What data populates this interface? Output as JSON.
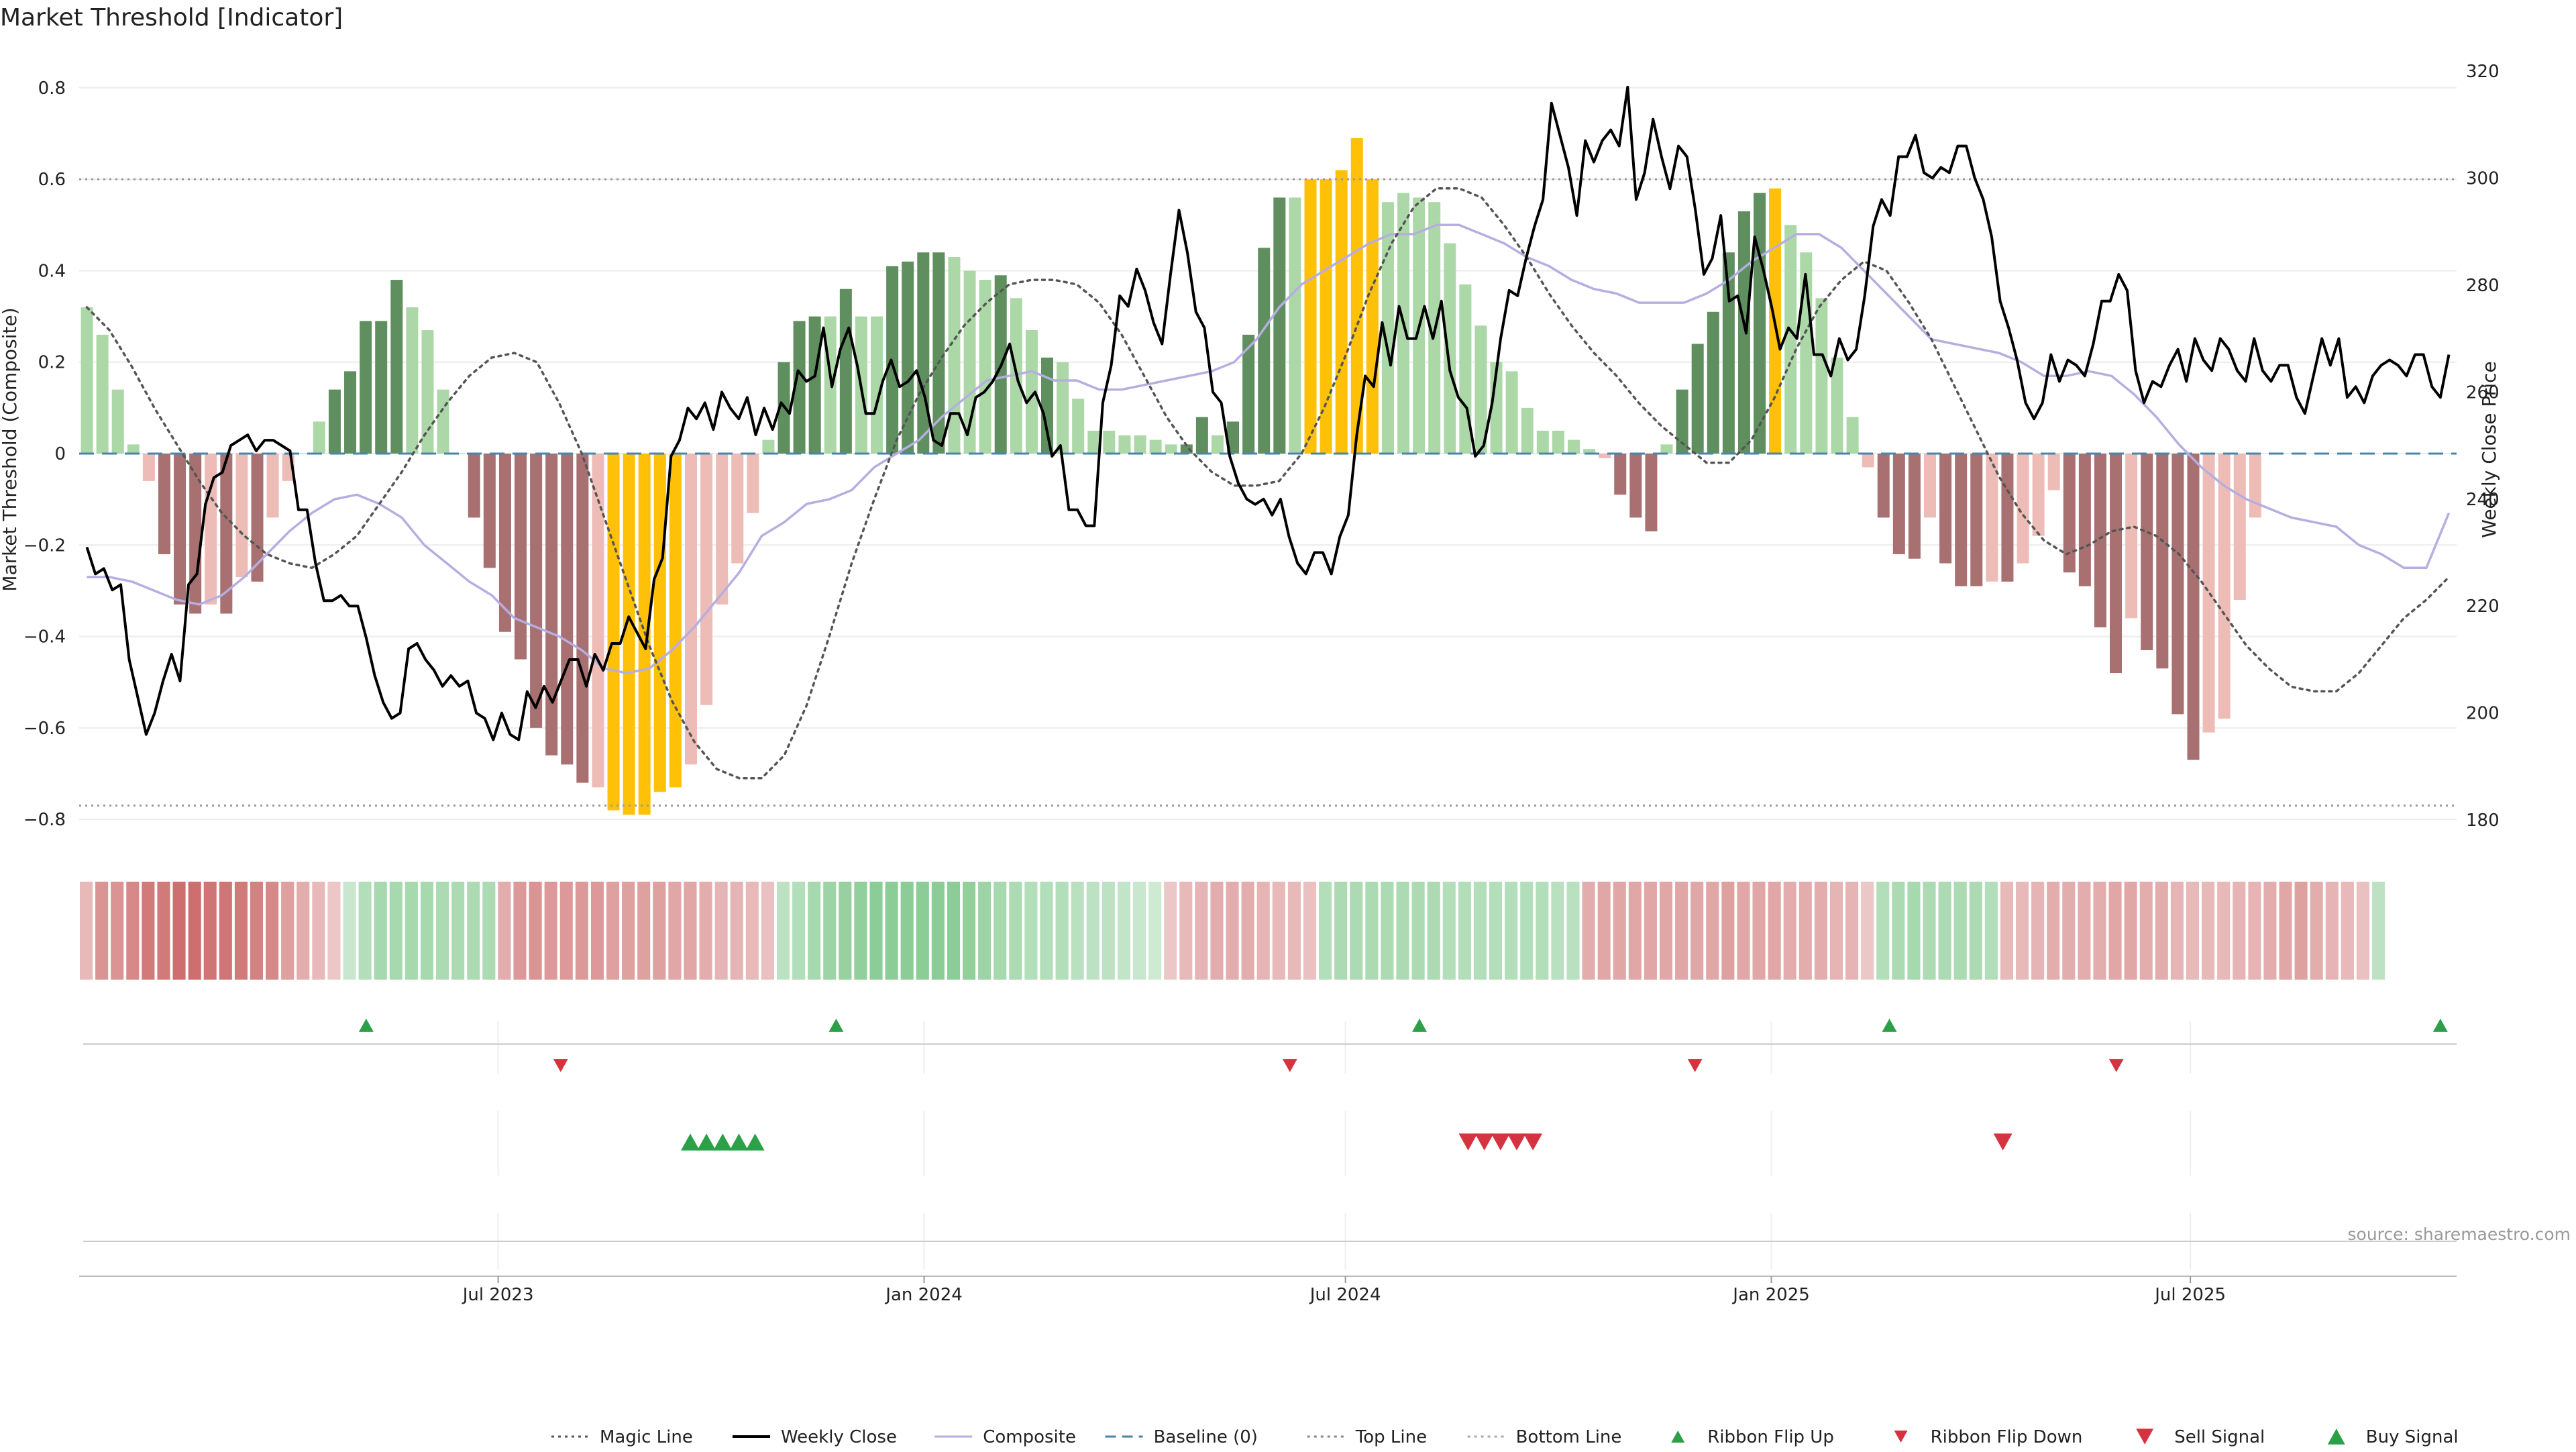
{
  "title": "Market Threshold [Indicator]",
  "source": "source: sharemaestro.com",
  "colors": {
    "dark_green": "#5f8f5f",
    "light_green": "#acd8a8",
    "dark_red": "#a87070",
    "light_red": "#eebcb6",
    "gold": "#ffc107",
    "weekly_close": "#000000",
    "composite": "#b6aee0",
    "magic": "#555555",
    "baseline": "#4a84a8",
    "threshold": "#888888",
    "buy_marker": "#2ca048",
    "sell_marker": "#d63340"
  },
  "chart_data": {
    "type": "bar",
    "title": "Market Threshold [Indicator]",
    "ylabel": "Market Threshold (Composite)",
    "y2label": "Weekly Close Price",
    "ylim": [
      -0.86,
      0.86
    ],
    "y2lim": [
      175,
      322
    ],
    "yticks": [
      -0.8,
      -0.6,
      -0.4,
      -0.2,
      0,
      0.2,
      0.4,
      0.6,
      0.8
    ],
    "ytick_labels": [
      "−0.8",
      "−0.6",
      "−0.4",
      "−0.2",
      "0",
      "0.2",
      "0.4",
      "0.6",
      "0.8"
    ],
    "y2ticks": [
      180,
      200,
      220,
      240,
      260,
      280,
      300,
      320
    ],
    "xlim": [
      "2023-01-01",
      "2025-10-24"
    ],
    "x_ticks": [
      {
        "date": "2023-07-01",
        "label": "Jul 2023"
      },
      {
        "date": "2024-01-01",
        "label": "Jan 2024"
      },
      {
        "date": "2024-07-01",
        "label": "Jul 2024"
      },
      {
        "date": "2025-01-01",
        "label": "Jan 2025"
      },
      {
        "date": "2025-07-01",
        "label": "Jul 2025"
      }
    ],
    "start_date": "2023-01-06",
    "bars": [
      {
        "v": 0.32,
        "c": "lg"
      },
      {
        "v": 0.26,
        "c": "lg"
      },
      {
        "v": 0.14,
        "c": "lg"
      },
      {
        "v": 0.02,
        "c": "lg"
      },
      {
        "v": -0.06,
        "c": "lr"
      },
      {
        "v": -0.22,
        "c": "dr"
      },
      {
        "v": -0.33,
        "c": "dr"
      },
      {
        "v": -0.35,
        "c": "dr"
      },
      {
        "v": -0.33,
        "c": "lr"
      },
      {
        "v": -0.35,
        "c": "dr"
      },
      {
        "v": -0.27,
        "c": "lr"
      },
      {
        "v": -0.28,
        "c": "dr"
      },
      {
        "v": -0.14,
        "c": "lr"
      },
      {
        "v": -0.06,
        "c": "lr"
      },
      {
        "v": 0.0,
        "c": "lg"
      },
      {
        "v": 0.07,
        "c": "lg"
      },
      {
        "v": 0.14,
        "c": "dg"
      },
      {
        "v": 0.18,
        "c": "dg"
      },
      {
        "v": 0.29,
        "c": "dg"
      },
      {
        "v": 0.29,
        "c": "dg"
      },
      {
        "v": 0.38,
        "c": "dg"
      },
      {
        "v": 0.32,
        "c": "lg"
      },
      {
        "v": 0.27,
        "c": "lg"
      },
      {
        "v": 0.14,
        "c": "lg"
      },
      {
        "v": 0.0,
        "c": "lg"
      },
      {
        "v": -0.14,
        "c": "dr"
      },
      {
        "v": -0.25,
        "c": "dr"
      },
      {
        "v": -0.39,
        "c": "dr"
      },
      {
        "v": -0.45,
        "c": "dr"
      },
      {
        "v": -0.6,
        "c": "dr"
      },
      {
        "v": -0.66,
        "c": "dr"
      },
      {
        "v": -0.68,
        "c": "dr"
      },
      {
        "v": -0.72,
        "c": "dr"
      },
      {
        "v": -0.73,
        "c": "lr"
      },
      {
        "v": -0.78,
        "c": "go"
      },
      {
        "v": -0.79,
        "c": "go"
      },
      {
        "v": -0.79,
        "c": "go"
      },
      {
        "v": -0.74,
        "c": "go"
      },
      {
        "v": -0.73,
        "c": "go"
      },
      {
        "v": -0.68,
        "c": "lr"
      },
      {
        "v": -0.55,
        "c": "lr"
      },
      {
        "v": -0.33,
        "c": "lr"
      },
      {
        "v": -0.24,
        "c": "lr"
      },
      {
        "v": -0.13,
        "c": "lr"
      },
      {
        "v": 0.03,
        "c": "lg"
      },
      {
        "v": 0.2,
        "c": "dg"
      },
      {
        "v": 0.29,
        "c": "dg"
      },
      {
        "v": 0.3,
        "c": "dg"
      },
      {
        "v": 0.3,
        "c": "lg"
      },
      {
        "v": 0.36,
        "c": "dg"
      },
      {
        "v": 0.3,
        "c": "lg"
      },
      {
        "v": 0.3,
        "c": "lg"
      },
      {
        "v": 0.41,
        "c": "dg"
      },
      {
        "v": 0.42,
        "c": "dg"
      },
      {
        "v": 0.44,
        "c": "dg"
      },
      {
        "v": 0.44,
        "c": "dg"
      },
      {
        "v": 0.43,
        "c": "lg"
      },
      {
        "v": 0.4,
        "c": "lg"
      },
      {
        "v": 0.38,
        "c": "lg"
      },
      {
        "v": 0.39,
        "c": "dg"
      },
      {
        "v": 0.34,
        "c": "lg"
      },
      {
        "v": 0.27,
        "c": "lg"
      },
      {
        "v": 0.21,
        "c": "dg"
      },
      {
        "v": 0.2,
        "c": "lg"
      },
      {
        "v": 0.12,
        "c": "lg"
      },
      {
        "v": 0.05,
        "c": "lg"
      },
      {
        "v": 0.05,
        "c": "lg"
      },
      {
        "v": 0.04,
        "c": "lg"
      },
      {
        "v": 0.04,
        "c": "lg"
      },
      {
        "v": 0.03,
        "c": "lg"
      },
      {
        "v": 0.02,
        "c": "lg"
      },
      {
        "v": 0.02,
        "c": "dg"
      },
      {
        "v": 0.08,
        "c": "dg"
      },
      {
        "v": 0.04,
        "c": "lg"
      },
      {
        "v": 0.07,
        "c": "dg"
      },
      {
        "v": 0.26,
        "c": "dg"
      },
      {
        "v": 0.45,
        "c": "dg"
      },
      {
        "v": 0.56,
        "c": "dg"
      },
      {
        "v": 0.56,
        "c": "lg"
      },
      {
        "v": 0.6,
        "c": "go"
      },
      {
        "v": 0.6,
        "c": "go"
      },
      {
        "v": 0.62,
        "c": "go"
      },
      {
        "v": 0.69,
        "c": "go"
      },
      {
        "v": 0.6,
        "c": "go"
      },
      {
        "v": 0.55,
        "c": "lg"
      },
      {
        "v": 0.57,
        "c": "lg"
      },
      {
        "v": 0.56,
        "c": "lg"
      },
      {
        "v": 0.55,
        "c": "lg"
      },
      {
        "v": 0.46,
        "c": "lg"
      },
      {
        "v": 0.37,
        "c": "lg"
      },
      {
        "v": 0.28,
        "c": "lg"
      },
      {
        "v": 0.2,
        "c": "lg"
      },
      {
        "v": 0.18,
        "c": "lg"
      },
      {
        "v": 0.1,
        "c": "lg"
      },
      {
        "v": 0.05,
        "c": "lg"
      },
      {
        "v": 0.05,
        "c": "lg"
      },
      {
        "v": 0.03,
        "c": "lg"
      },
      {
        "v": 0.01,
        "c": "lg"
      },
      {
        "v": -0.01,
        "c": "lr"
      },
      {
        "v": -0.09,
        "c": "dr"
      },
      {
        "v": -0.14,
        "c": "dr"
      },
      {
        "v": -0.17,
        "c": "dr"
      },
      {
        "v": 0.02,
        "c": "lg"
      },
      {
        "v": 0.14,
        "c": "dg"
      },
      {
        "v": 0.24,
        "c": "dg"
      },
      {
        "v": 0.31,
        "c": "dg"
      },
      {
        "v": 0.44,
        "c": "dg"
      },
      {
        "v": 0.53,
        "c": "dg"
      },
      {
        "v": 0.57,
        "c": "dg"
      },
      {
        "v": 0.58,
        "c": "go"
      },
      {
        "v": 0.5,
        "c": "lg"
      },
      {
        "v": 0.44,
        "c": "lg"
      },
      {
        "v": 0.34,
        "c": "lg"
      },
      {
        "v": 0.21,
        "c": "lg"
      },
      {
        "v": 0.08,
        "c": "lg"
      },
      {
        "v": -0.03,
        "c": "lr"
      },
      {
        "v": -0.14,
        "c": "dr"
      },
      {
        "v": -0.22,
        "c": "dr"
      },
      {
        "v": -0.23,
        "c": "dr"
      },
      {
        "v": -0.14,
        "c": "lr"
      },
      {
        "v": -0.24,
        "c": "dr"
      },
      {
        "v": -0.29,
        "c": "dr"
      },
      {
        "v": -0.29,
        "c": "dr"
      },
      {
        "v": -0.28,
        "c": "lr"
      },
      {
        "v": -0.28,
        "c": "dr"
      },
      {
        "v": -0.24,
        "c": "lr"
      },
      {
        "v": -0.18,
        "c": "lr"
      },
      {
        "v": -0.08,
        "c": "lr"
      },
      {
        "v": -0.26,
        "c": "dr"
      },
      {
        "v": -0.29,
        "c": "dr"
      },
      {
        "v": -0.38,
        "c": "dr"
      },
      {
        "v": -0.48,
        "c": "dr"
      },
      {
        "v": -0.36,
        "c": "lr"
      },
      {
        "v": -0.43,
        "c": "dr"
      },
      {
        "v": -0.47,
        "c": "dr"
      },
      {
        "v": -0.57,
        "c": "dr"
      },
      {
        "v": -0.67,
        "c": "dr"
      },
      {
        "v": -0.61,
        "c": "lr"
      },
      {
        "v": -0.58,
        "c": "lr"
      },
      {
        "v": -0.32,
        "c": "lr"
      },
      {
        "v": -0.14,
        "c": "lr"
      }
    ],
    "weekly_close": [
      231,
      226,
      227,
      223,
      224,
      210,
      203,
      196,
      200,
      206,
      211,
      206,
      224,
      226,
      239,
      244,
      245,
      250,
      251,
      252,
      249,
      251,
      251,
      250,
      249,
      238,
      238,
      228,
      221,
      221,
      222,
      220,
      220,
      214,
      207,
      202,
      199,
      200,
      212,
      213,
      210,
      208,
      205,
      207,
      205,
      206,
      200,
      199,
      195,
      200,
      196,
      195,
      204,
      201,
      205,
      202,
      206,
      210,
      210,
      205,
      211,
      208,
      213,
      213,
      218,
      215,
      212,
      225,
      229,
      248,
      251,
      257,
      255,
      258,
      253,
      260,
      257,
      255,
      259,
      252,
      257,
      253,
      258,
      256,
      264,
      262,
      263,
      272,
      261,
      268,
      272,
      265,
      256,
      256,
      262,
      266,
      261,
      262,
      264,
      259,
      251,
      250,
      256,
      256,
      252,
      259,
      260,
      262,
      265,
      269,
      262,
      258,
      260,
      256,
      248,
      250,
      238,
      238,
      235,
      235,
      258,
      265,
      278,
      276,
      283,
      279,
      273,
      269,
      282,
      294,
      286,
      275,
      272,
      260,
      258,
      248,
      243,
      240,
      239,
      240,
      237,
      240,
      233,
      228,
      226,
      230,
      230,
      226,
      233,
      237,
      252,
      263,
      261,
      273,
      265,
      276,
      270,
      270,
      276,
      270,
      277,
      264,
      259,
      257,
      248,
      250,
      258,
      270,
      279,
      278,
      285,
      291,
      296,
      314,
      308,
      302,
      293,
      307,
      303,
      307,
      309,
      306,
      317,
      296,
      301,
      311,
      304,
      298,
      306,
      304,
      294,
      282,
      285,
      293,
      277,
      278,
      271,
      289,
      283,
      276,
      268,
      272,
      270,
      282,
      267,
      267,
      263,
      270,
      266,
      268,
      278,
      291,
      296,
      293,
      304,
      304,
      308,
      301,
      300,
      302,
      301,
      306,
      306,
      300,
      296,
      289,
      277,
      272,
      266,
      258,
      255,
      258,
      267,
      262,
      266,
      265,
      263,
      269,
      277,
      277,
      282,
      279,
      264,
      258,
      262,
      261,
      265,
      268,
      262,
      270,
      266,
      264,
      270,
      268,
      264,
      262,
      270,
      264,
      262,
      265,
      265,
      259,
      256,
      263,
      270,
      265,
      270,
      259,
      261,
      258,
      263,
      265,
      266,
      265,
      263,
      267,
      267,
      261,
      259,
      267
    ],
    "composite": [
      -0.27,
      -0.27,
      -0.28,
      -0.3,
      -0.32,
      -0.33,
      -0.31,
      -0.27,
      -0.22,
      -0.17,
      -0.13,
      -0.1,
      -0.09,
      -0.11,
      -0.14,
      -0.2,
      -0.24,
      -0.28,
      -0.31,
      -0.36,
      -0.38,
      -0.4,
      -0.43,
      -0.47,
      -0.48,
      -0.47,
      -0.43,
      -0.38,
      -0.32,
      -0.26,
      -0.18,
      -0.15,
      -0.11,
      -0.1,
      -0.08,
      -0.03,
      0.0,
      0.03,
      0.08,
      0.12,
      0.16,
      0.17,
      0.18,
      0.16,
      0.16,
      0.14,
      0.14,
      0.15,
      0.16,
      0.17,
      0.18,
      0.2,
      0.25,
      0.32,
      0.37,
      0.4,
      0.43,
      0.46,
      0.48,
      0.48,
      0.5,
      0.5,
      0.48,
      0.46,
      0.43,
      0.41,
      0.38,
      0.36,
      0.35,
      0.33,
      0.33,
      0.33,
      0.35,
      0.38,
      0.42,
      0.45,
      0.48,
      0.48,
      0.45,
      0.4,
      0.35,
      0.3,
      0.25,
      0.24,
      0.23,
      0.22,
      0.2,
      0.17,
      0.17,
      0.18,
      0.17,
      0.13,
      0.08,
      0.02,
      -0.03,
      -0.07,
      -0.1,
      -0.12,
      -0.14,
      -0.15,
      -0.16,
      -0.2,
      -0.22,
      -0.25,
      -0.25,
      -0.13
    ],
    "magic": [
      0.32,
      0.27,
      0.19,
      0.1,
      0.02,
      -0.06,
      -0.13,
      -0.18,
      -0.22,
      -0.24,
      -0.25,
      -0.22,
      -0.18,
      -0.11,
      -0.04,
      0.04,
      0.11,
      0.17,
      0.21,
      0.22,
      0.2,
      0.11,
      0.0,
      -0.14,
      -0.28,
      -0.42,
      -0.54,
      -0.63,
      -0.69,
      -0.71,
      -0.71,
      -0.66,
      -0.55,
      -0.4,
      -0.24,
      -0.1,
      0.03,
      0.13,
      0.21,
      0.28,
      0.33,
      0.37,
      0.38,
      0.38,
      0.37,
      0.33,
      0.26,
      0.17,
      0.08,
      0.01,
      -0.04,
      -0.07,
      -0.07,
      -0.06,
      0.0,
      0.1,
      0.22,
      0.35,
      0.46,
      0.54,
      0.58,
      0.58,
      0.56,
      0.5,
      0.43,
      0.35,
      0.28,
      0.22,
      0.17,
      0.11,
      0.06,
      0.02,
      -0.02,
      -0.02,
      0.03,
      0.12,
      0.23,
      0.32,
      0.38,
      0.42,
      0.4,
      0.33,
      0.25,
      0.15,
      0.05,
      -0.05,
      -0.13,
      -0.19,
      -0.22,
      -0.2,
      -0.17,
      -0.16,
      -0.18,
      -0.22,
      -0.28,
      -0.35,
      -0.42,
      -0.47,
      -0.51,
      -0.52,
      -0.52,
      -0.48,
      -0.42,
      -0.36,
      -0.32,
      -0.27
    ],
    "ribbon": [
      -0.3,
      -0.6,
      -0.6,
      -0.7,
      -0.8,
      -0.8,
      -0.9,
      -0.9,
      -0.85,
      -0.85,
      -0.8,
      -0.75,
      -0.7,
      -0.5,
      -0.4,
      -0.3,
      -0.2,
      0.2,
      0.4,
      0.5,
      0.5,
      0.5,
      0.5,
      0.45,
      0.45,
      0.45,
      0.45,
      -0.4,
      -0.55,
      -0.6,
      -0.55,
      -0.55,
      -0.55,
      -0.55,
      -0.5,
      -0.5,
      -0.5,
      -0.5,
      -0.45,
      -0.45,
      -0.4,
      -0.35,
      -0.35,
      -0.3,
      -0.25,
      0.3,
      0.4,
      0.5,
      0.6,
      0.65,
      0.7,
      0.75,
      0.75,
      0.75,
      0.75,
      0.75,
      0.75,
      0.7,
      0.6,
      0.5,
      0.45,
      0.4,
      0.4,
      0.4,
      0.35,
      0.3,
      0.3,
      0.25,
      0.2,
      0.15,
      -0.2,
      -0.3,
      -0.35,
      -0.4,
      -0.4,
      -0.4,
      -0.35,
      -0.3,
      -0.3,
      -0.25,
      0.4,
      0.45,
      0.45,
      0.45,
      0.45,
      0.45,
      0.45,
      0.45,
      0.4,
      0.4,
      0.4,
      0.4,
      0.4,
      0.4,
      0.4,
      0.35,
      0.35,
      -0.4,
      -0.45,
      -0.45,
      -0.45,
      -0.45,
      -0.45,
      -0.45,
      -0.45,
      -0.45,
      -0.5,
      -0.45,
      -0.45,
      -0.45,
      -0.4,
      -0.4,
      -0.4,
      -0.35,
      -0.35,
      -0.2,
      0.4,
      0.45,
      0.5,
      0.45,
      0.45,
      0.45,
      0.45,
      0.4,
      -0.3,
      -0.3,
      -0.35,
      -0.4,
      -0.4,
      -0.4,
      -0.4,
      -0.45,
      -0.45,
      -0.4,
      -0.4,
      -0.35,
      -0.3,
      -0.3,
      -0.3,
      -0.35,
      -0.35,
      -0.4,
      -0.45,
      -0.5,
      -0.4,
      -0.35,
      -0.3,
      -0.25,
      0.3
    ],
    "ribbon_flip_up": [
      "2023-05-05",
      "2023-11-24",
      "2024-08-02",
      "2025-02-21",
      "2025-10-17"
    ],
    "ribbon_flip_down": [
      "2023-07-28",
      "2024-06-07",
      "2024-11-29",
      "2025-05-30"
    ],
    "buy_signals": [
      "2023-09-22",
      "2023-09-29",
      "2023-10-06",
      "2023-10-13",
      "2023-10-20"
    ],
    "sell_signals": [
      "2024-08-23",
      "2024-08-30",
      "2024-09-06",
      "2024-09-13",
      "2024-09-20",
      "2025-04-11"
    ],
    "top_line": 0.6,
    "bottom_line": -0.77,
    "baseline": 0,
    "legend": [
      {
        "label": "Magic Line",
        "kind": "dotted",
        "color": "#555555"
      },
      {
        "label": "Weekly Close",
        "kind": "solid",
        "color": "#000000"
      },
      {
        "label": "Composite",
        "kind": "solid",
        "color": "#b6aee0"
      },
      {
        "label": "Baseline (0)",
        "kind": "dashed",
        "color": "#4a84a8"
      },
      {
        "label": "Top Line",
        "kind": "dotted",
        "color": "#888888"
      },
      {
        "label": "Bottom Line",
        "kind": "dotted",
        "color": "#aaaaaa"
      },
      {
        "label": "Ribbon Flip Up",
        "kind": "tri-up-small",
        "color": "#2ca048"
      },
      {
        "label": "Ribbon Flip Down",
        "kind": "tri-down-small",
        "color": "#d63340"
      },
      {
        "label": "Sell Signal",
        "kind": "tri-down",
        "color": "#d63340"
      },
      {
        "label": "Buy Signal",
        "kind": "tri-up",
        "color": "#2ca048"
      }
    ]
  }
}
